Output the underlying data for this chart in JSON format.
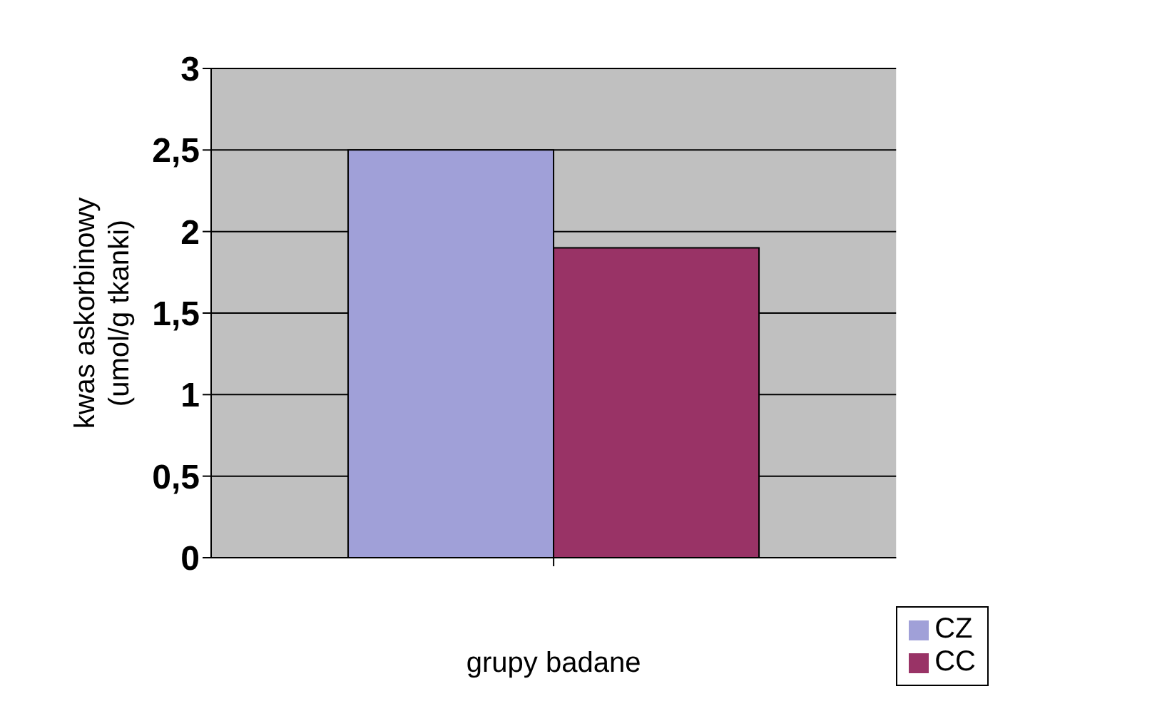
{
  "chart_data": {
    "type": "bar",
    "categories": [
      null
    ],
    "series": [
      {
        "name": "CZ",
        "color": "#a0a0d8",
        "values": [
          2.5
        ]
      },
      {
        "name": "CC",
        "color": "#993366",
        "values": [
          1.9
        ]
      }
    ],
    "xlabel": "grupy badane",
    "ylabel": "kwas askorbinowy\n(umol/g tkanki)",
    "ylim": [
      0,
      3
    ],
    "yticks": [
      0,
      {
        "value": 0.5,
        "label": "0,5"
      },
      1,
      {
        "value": 1.5,
        "label": "1,5"
      },
      2,
      {
        "value": 2.5,
        "label": "2,5"
      },
      3
    ],
    "grid": "y",
    "legend": "bottom right"
  }
}
